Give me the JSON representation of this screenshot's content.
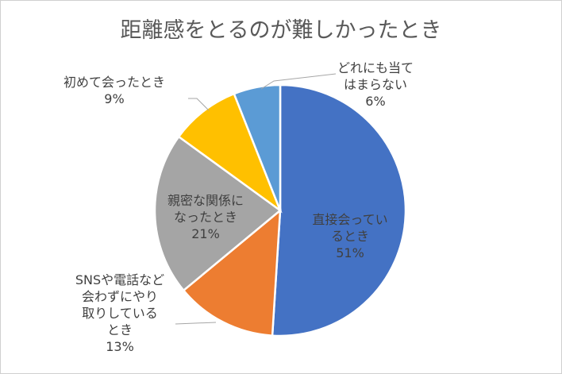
{
  "chart_data": {
    "type": "pie",
    "title": "距離感をとるのが難しかったとき",
    "slices": [
      {
        "label_lines": [
          "直接会ってい",
          "るとき"
        ],
        "value": 51,
        "percent_label": "51%",
        "color": "#4472C4"
      },
      {
        "label_lines": [
          "SNSや電話など",
          "会わずにやり",
          "取りしている",
          "とき"
        ],
        "value": 13,
        "percent_label": "13%",
        "color": "#ED7D31"
      },
      {
        "label_lines": [
          "親密な関係に",
          "なったとき"
        ],
        "value": 21,
        "percent_label": "21%",
        "color": "#A5A5A5"
      },
      {
        "label_lines": [
          "初めて会ったとき"
        ],
        "value": 9,
        "percent_label": "9%",
        "color": "#FFC000"
      },
      {
        "label_lines": [
          "どれにも当て",
          "はまらない"
        ],
        "value": 6,
        "percent_label": "6%",
        "color": "#5B9BD5"
      }
    ],
    "legend": "none",
    "start_angle": "12 o'clock, clockwise"
  }
}
